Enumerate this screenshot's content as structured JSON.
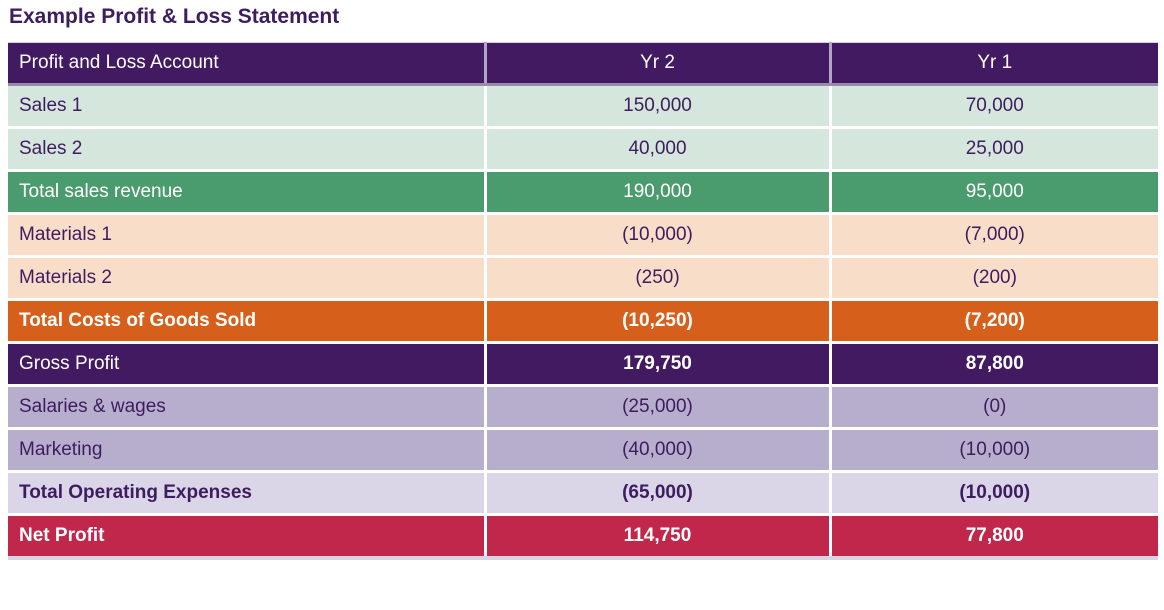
{
  "title": "Example Profit & Loss Statement",
  "table": {
    "columns": [
      "Profit and Loss Account",
      "Yr 2",
      "Yr 1"
    ],
    "rows": [
      {
        "label": "Sales 1",
        "yr2": "150,000",
        "yr1": "70,000",
        "style": "mint"
      },
      {
        "label": "Sales 2",
        "yr2": "40,000",
        "yr1": "25,000",
        "style": "mint"
      },
      {
        "label": "Total sales revenue",
        "yr2": "190,000",
        "yr1": "95,000",
        "style": "green"
      },
      {
        "label": "Materials 1",
        "yr2": "(10,000)",
        "yr1": "(7,000)",
        "style": "peach"
      },
      {
        "label": "Materials 2",
        "yr2": "(250)",
        "yr1": "(200)",
        "style": "peach"
      },
      {
        "label": "Total Costs of Goods Sold",
        "yr2": "(10,250)",
        "yr1": "(7,200)",
        "style": "orange"
      },
      {
        "label": "Gross Profit",
        "yr2": "179,750",
        "yr1": "87,800",
        "style": "purple"
      },
      {
        "label": "Salaries & wages",
        "yr2": "(25,000)",
        "yr1": "(0)",
        "style": "lavender"
      },
      {
        "label": "Marketing",
        "yr2": "(40,000)",
        "yr1": "(10,000)",
        "style": "lavender"
      },
      {
        "label": "Total Operating Expenses",
        "yr2": "(65,000)",
        "yr1": "(10,000)",
        "style": "lavender-light"
      },
      {
        "label": "Net Profit",
        "yr2": "114,750",
        "yr1": "77,800",
        "style": "crimson"
      }
    ]
  },
  "colors": {
    "header-bg": "#421a61",
    "text-purple": "#3e1c60",
    "mint": "#d5e6dc",
    "green": "#4a9c6e",
    "peach": "#f8ddc8",
    "orange": "#d6601b",
    "lavender": "#b7adcd",
    "lavender-light": "#dad5e7",
    "crimson": "#c0274a"
  }
}
